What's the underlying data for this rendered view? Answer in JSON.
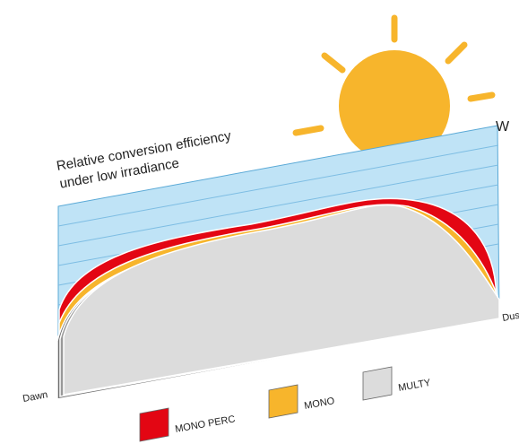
{
  "title": [
    "Relative conversion efficiency",
    "under low irradiance"
  ],
  "axis": {
    "unit": "W",
    "start": "Dawn",
    "end": "Dusk"
  },
  "legend": [
    {
      "label": "MONO PERC"
    },
    {
      "label": "MONO"
    },
    {
      "label": "MULTY"
    }
  ]
}
